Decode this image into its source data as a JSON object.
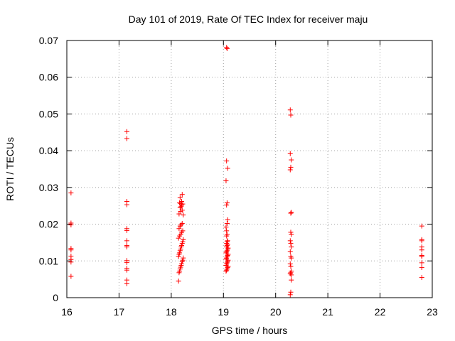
{
  "chart_data": {
    "type": "scatter",
    "title": "Day 101 of 2019, Rate Of TEC Index for receiver maju",
    "xlabel": "GPS time / hours",
    "ylabel": "ROTI / TECUs",
    "xlim": [
      16,
      23
    ],
    "ylim": [
      0,
      0.07
    ],
    "xticks": [
      "16",
      "17",
      "18",
      "19",
      "20",
      "21",
      "22",
      "23"
    ],
    "yticks": [
      "0",
      "0.01",
      "0.02",
      "0.03",
      "0.04",
      "0.05",
      "0.06",
      "0.07"
    ],
    "grid": true,
    "marker": "+",
    "color": "#ff0000",
    "x": [
      16.08,
      16.08,
      16.08,
      16.08,
      16.08,
      16.08,
      16.08,
      16.08,
      16.08,
      17.15,
      17.15,
      17.15,
      17.15,
      17.15,
      17.15,
      17.15,
      17.15,
      17.15,
      17.15,
      17.15,
      17.15,
      17.15,
      17.15,
      17.15,
      18.14,
      18.15,
      18.16,
      18.17,
      18.18,
      18.19,
      18.2,
      18.21,
      18.22,
      18.23,
      18.14,
      18.15,
      18.16,
      18.17,
      18.18,
      18.19,
      18.2,
      18.21,
      18.22,
      18.23,
      18.14,
      18.16,
      18.18,
      18.2,
      18.22,
      18.15,
      18.17,
      18.19,
      18.21,
      18.23,
      18.15,
      18.18,
      18.21,
      18.17,
      18.19,
      18.2,
      18.22,
      18.16,
      18.18,
      18.2,
      18.17,
      18.21,
      19.05,
      19.06,
      19.07,
      19.08,
      19.09,
      19.05,
      19.06,
      19.07,
      19.08,
      19.09,
      19.05,
      19.06,
      19.07,
      19.08,
      19.09,
      19.05,
      19.06,
      19.07,
      19.08,
      19.09,
      19.06,
      19.07,
      19.08,
      19.06,
      19.07,
      19.08,
      19.06,
      19.07,
      19.06,
      19.05,
      19.07,
      19.08,
      19.06,
      19.07,
      19.05,
      19.08,
      19.06,
      19.07,
      19.06,
      20.28,
      20.29,
      20.28,
      20.3,
      20.29,
      20.28,
      20.3,
      20.29,
      20.29,
      20.3,
      20.28,
      20.29,
      20.3,
      20.28,
      20.29,
      20.3,
      20.28,
      20.29,
      20.3,
      20.29,
      20.28,
      20.3,
      20.29,
      20.28,
      20.3,
      22.8,
      22.8,
      22.8,
      22.8,
      22.8,
      22.8,
      22.8,
      22.8,
      22.8,
      22.8
    ],
    "y": [
      0.0285,
      0.0203,
      0.0198,
      0.0134,
      0.013,
      0.0113,
      0.0104,
      0.0097,
      0.0058,
      0.0452,
      0.0433,
      0.0262,
      0.0253,
      0.0188,
      0.0183,
      0.0155,
      0.0142,
      0.0138,
      0.0101,
      0.0096,
      0.008,
      0.0075,
      0.0048,
      0.0038,
      0.0045,
      0.0068,
      0.0072,
      0.0078,
      0.0083,
      0.0088,
      0.0092,
      0.0098,
      0.0102,
      0.0108,
      0.0112,
      0.0118,
      0.0122,
      0.0128,
      0.0132,
      0.0138,
      0.0142,
      0.0148,
      0.0152,
      0.0158,
      0.0162,
      0.0168,
      0.0172,
      0.0178,
      0.0182,
      0.0188,
      0.0195,
      0.0198,
      0.0202,
      0.0225,
      0.0228,
      0.0235,
      0.0238,
      0.0245,
      0.0248,
      0.0252,
      0.0255,
      0.0258,
      0.0256,
      0.0262,
      0.0272,
      0.0281,
      0.0072,
      0.0075,
      0.0078,
      0.0082,
      0.0085,
      0.0088,
      0.0092,
      0.0095,
      0.0098,
      0.0102,
      0.0105,
      0.0108,
      0.0112,
      0.0115,
      0.0118,
      0.0122,
      0.0125,
      0.0128,
      0.0132,
      0.0135,
      0.0138,
      0.0142,
      0.0145,
      0.0148,
      0.0152,
      0.0155,
      0.0168,
      0.0172,
      0.0182,
      0.0192,
      0.0202,
      0.0212,
      0.0252,
      0.0258,
      0.0318,
      0.0352,
      0.0372,
      0.0678,
      0.0681,
      0.0511,
      0.0497,
      0.0392,
      0.0375,
      0.0355,
      0.0348,
      0.0232,
      0.023,
      0.0178,
      0.0172,
      0.0155,
      0.0148,
      0.0138,
      0.0125,
      0.0112,
      0.0108,
      0.0092,
      0.0085,
      0.0072,
      0.0068,
      0.0065,
      0.0062,
      0.0015,
      0.0008,
      0.0048,
      0.0195,
      0.0158,
      0.0155,
      0.0138,
      0.013,
      0.0115,
      0.0112,
      0.0095,
      0.0082,
      0.0055
    ]
  }
}
